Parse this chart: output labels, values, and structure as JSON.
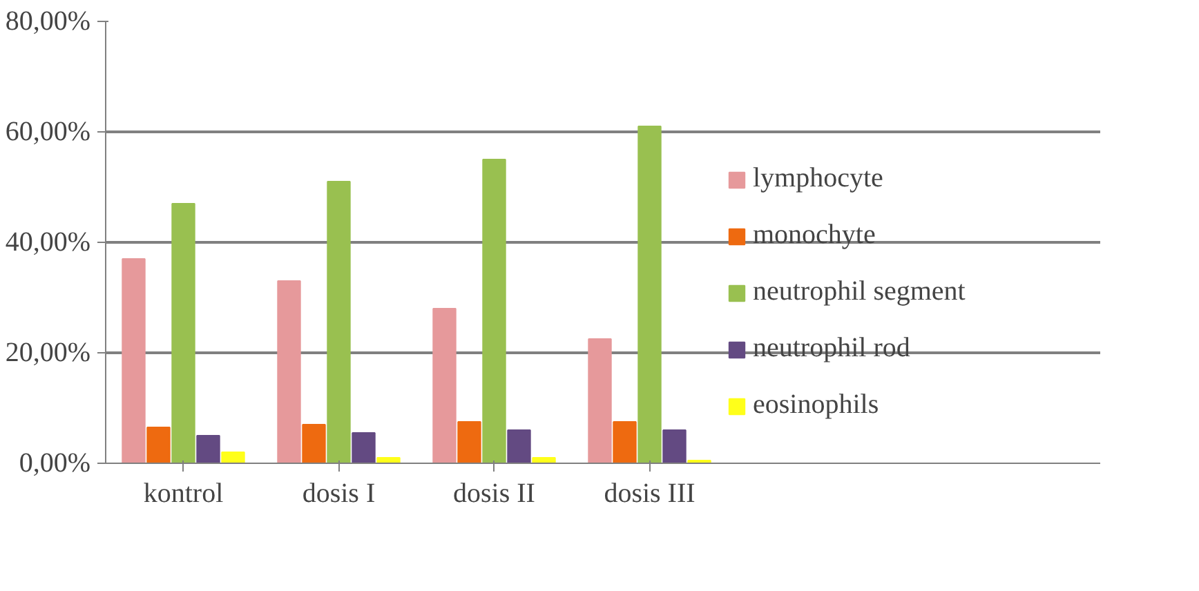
{
  "chart_data": {
    "type": "bar",
    "categories": [
      "kontrol",
      "dosis I",
      "dosis II",
      "dosis III"
    ],
    "series": [
      {
        "name": "lymphocyte",
        "color": "#e6999b",
        "values": [
          37,
          33,
          28,
          22.5
        ]
      },
      {
        "name": "monochyte",
        "color": "#ee6a10",
        "values": [
          6.5,
          7,
          7.5,
          7.5
        ]
      },
      {
        "name": "neutrophil segment",
        "color": "#99c050",
        "values": [
          47,
          51,
          55,
          61
        ]
      },
      {
        "name": "neutrophil rod",
        "color": "#634a82",
        "values": [
          5,
          5.5,
          6,
          6
        ]
      },
      {
        "name": "eosinophils",
        "color": "#ffff1a",
        "values": [
          2,
          1,
          1,
          0.5
        ]
      }
    ],
    "ylim": [
      0,
      80
    ],
    "yticks": [
      {
        "value": 0,
        "label": "0,00%"
      },
      {
        "value": 20,
        "label": "20,00%"
      },
      {
        "value": 40,
        "label": "40,00%"
      },
      {
        "value": 60,
        "label": "60,00%"
      },
      {
        "value": 80,
        "label": "80,00%"
      }
    ],
    "grid": "y",
    "legend": "right"
  }
}
